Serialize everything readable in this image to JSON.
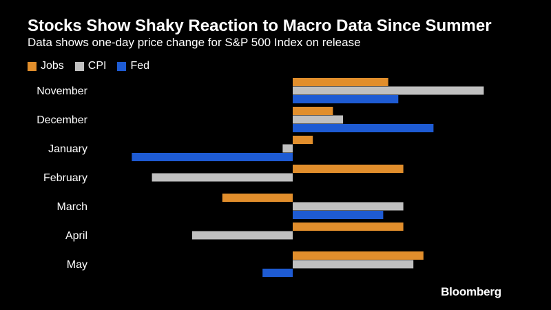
{
  "chart_data": {
    "type": "bar",
    "orientation": "horizontal",
    "title": "Stocks Show Shaky Reaction to Macro Data Since Summer",
    "subtitle": "Data shows one-day price change for S&P 500 Index on release",
    "categories": [
      "November",
      "December",
      "January",
      "February",
      "March",
      "April",
      "May"
    ],
    "series": [
      {
        "name": "Jobs",
        "color": "#e18e2c",
        "values": [
          1.9,
          0.8,
          0.4,
          2.2,
          -1.4,
          2.2,
          2.6
        ]
      },
      {
        "name": "CPI",
        "color": "#c0c0c0",
        "values": [
          3.8,
          1.0,
          -0.2,
          -2.8,
          2.2,
          -2.0,
          2.4
        ]
      },
      {
        "name": "Fed",
        "color": "#1e5bd3",
        "values": [
          2.1,
          2.8,
          -3.2,
          null,
          1.8,
          null,
          -0.6
        ]
      }
    ],
    "xlim": [
      -3.2,
      3.8
    ],
    "grid": false,
    "legend_position": "top-left",
    "source": "Bloomberg"
  }
}
